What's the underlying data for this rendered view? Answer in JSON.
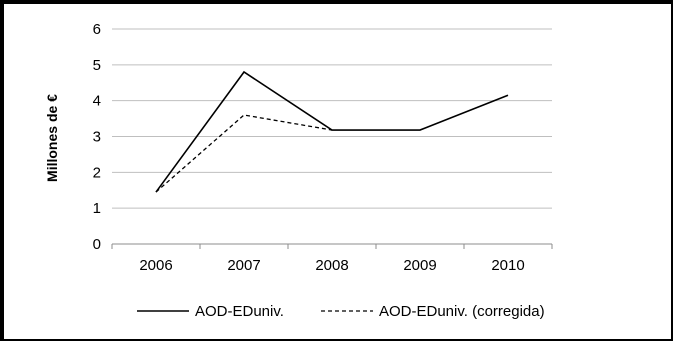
{
  "chart_data": {
    "type": "line",
    "categories": [
      "2006",
      "2007",
      "2008",
      "2009",
      "2010"
    ],
    "series": [
      {
        "name": "AOD-EDuniv.",
        "values": [
          1.45,
          4.8,
          3.18,
          3.18,
          4.15
        ],
        "style": "solid",
        "color": "#000000"
      },
      {
        "name": "AOD-EDuniv. (corregida)",
        "values": [
          1.45,
          3.6,
          3.18,
          null,
          null
        ],
        "style": "dashed",
        "color": "#000000"
      }
    ],
    "ylabel": "Millones de €",
    "xlabel": "",
    "title": "",
    "ylim": [
      0,
      6
    ],
    "yticks": [
      "0",
      "1",
      "2",
      "3",
      "4",
      "5",
      "6"
    ],
    "grid": true,
    "legend_position": "bottom"
  }
}
